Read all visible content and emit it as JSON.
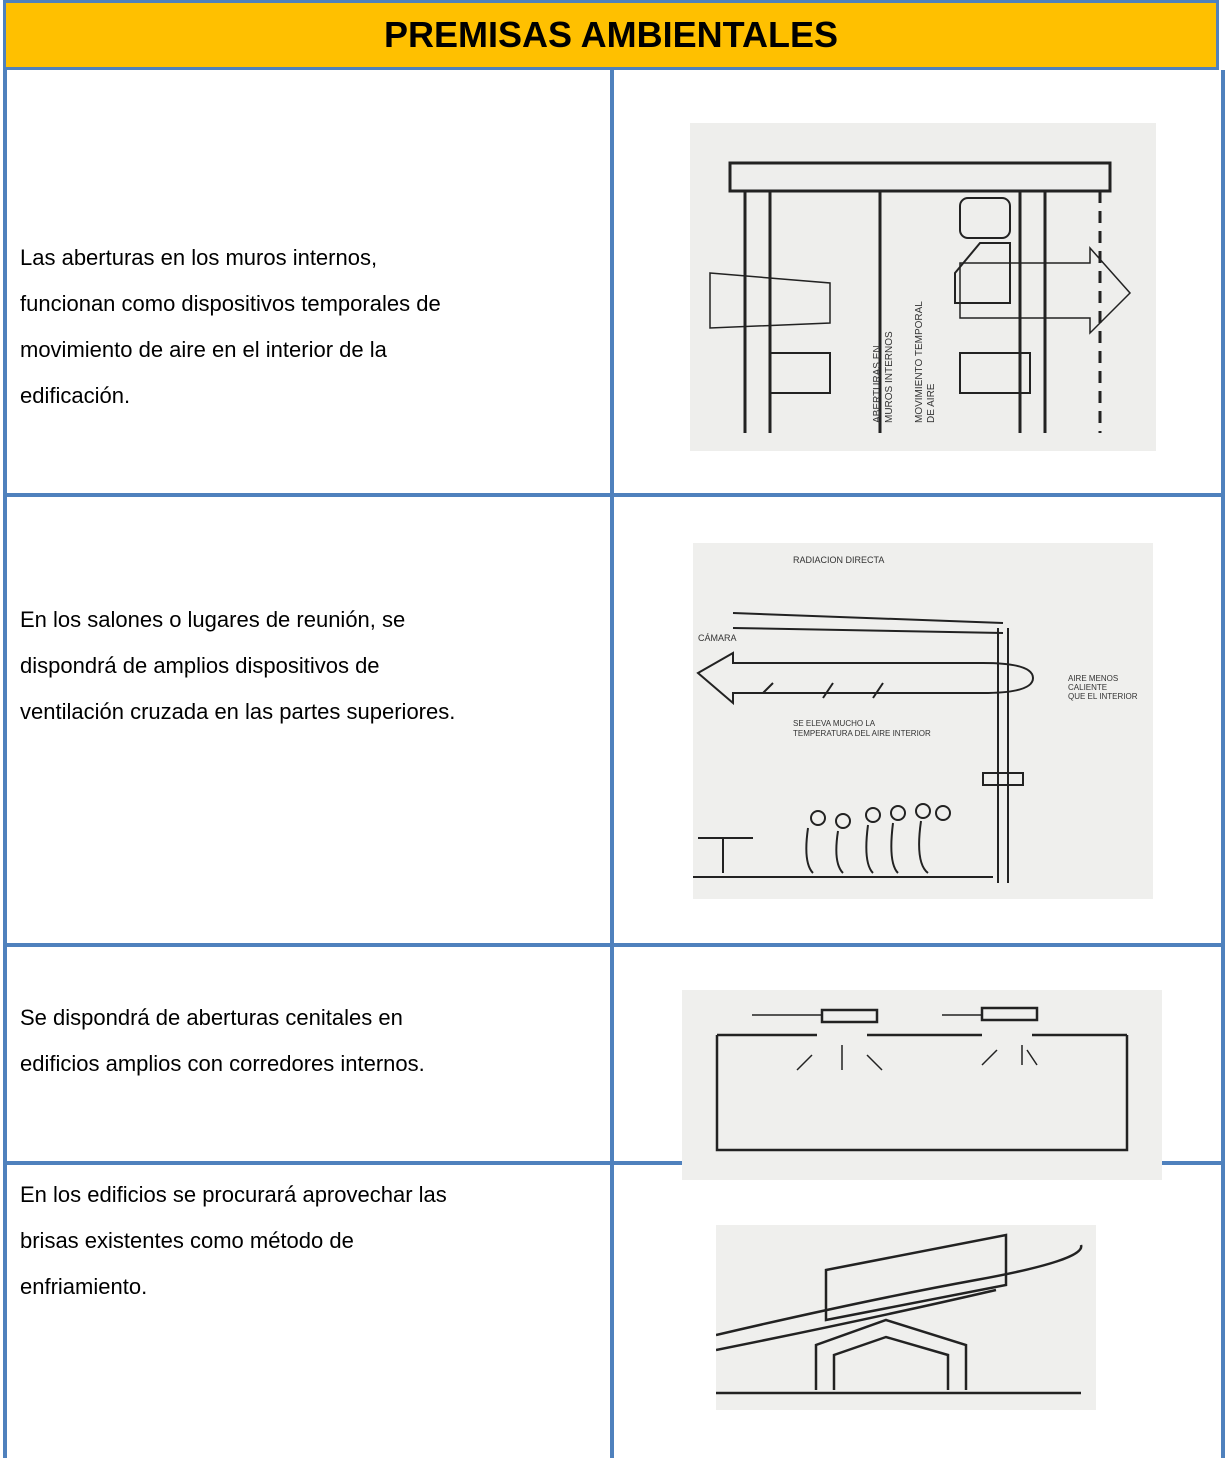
{
  "header": {
    "title": "PREMISAS AMBIENTALES"
  },
  "rows": [
    {
      "text": [
        "Las aberturas en los muros internos,",
        "funcionan como dispositivos temporales de",
        "movimiento de aire en el interior de la",
        "edificación."
      ],
      "figure_labels": [
        "ABERTURAS EN",
        "MUROS INTERNOS",
        "MOVIMIENTO TEMPORAL",
        "DE AIRE"
      ]
    },
    {
      "text": [
        "En los salones o lugares de reunión, se",
        "dispondrá de amplios dispositivos de",
        "ventilación cruzada en las partes superiores."
      ],
      "figure_labels": [
        "RADIACION DIRECTA",
        "CÁMARA",
        "AIRE MENOS",
        "CALIENTE",
        "QUE EL INTERIOR",
        "SE ELEVA MUCHO LA",
        "TEMPERATURA DEL AIRE INTERIOR"
      ]
    },
    {
      "text": [
        "Se dispondrá de aberturas cenitales en",
        "edificios amplios con corredores internos."
      ]
    },
    {
      "text": [
        "En los edificios se procurará aprovechar las",
        "brisas existentes como método de",
        "enfriamiento."
      ]
    }
  ]
}
